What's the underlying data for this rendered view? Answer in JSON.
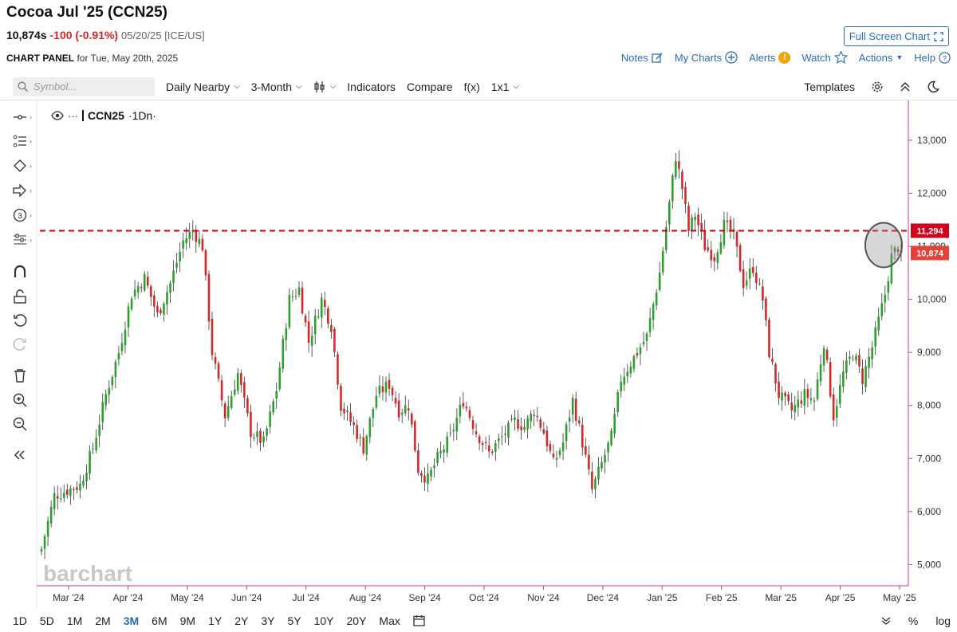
{
  "header": {
    "title": "Cocoa Jul '25 (CCN25)",
    "last": "10,874s",
    "change": "-100 (-0.91%)",
    "meta": "05/20/25 [ICE/US]",
    "full_screen": "Full Screen Chart",
    "panel_label": "CHART PANEL",
    "panel_date": "for Tue, May 20th, 2025"
  },
  "top_links": [
    "Notes",
    "My Charts",
    "Alerts",
    "Watch",
    "Actions",
    "Help"
  ],
  "toolbar": {
    "symbol_placeholder": "Symbol...",
    "nearby": "Daily Nearby",
    "period": "3-Month",
    "indicators": "Indicators",
    "compare": "Compare",
    "fx": "f(x)",
    "layout": "1x1",
    "templates": "Templates"
  },
  "legend": {
    "symbol": "CCN25",
    "interval": "·1Dn·"
  },
  "watermark": "barchart",
  "colors": {
    "up": "#2ca02c",
    "down": "#d62728",
    "accent": "#2b6cb0",
    "line": "#d0021b"
  },
  "chart_data": {
    "type": "candlestick",
    "x_labels": [
      "Mar '24",
      "Apr '24",
      "May '24",
      "Jun '24",
      "Jul '24",
      "Aug '24",
      "Sep '24",
      "Oct '24",
      "Nov '24",
      "Dec '24",
      "Jan '25",
      "Feb '25",
      "Mar '25",
      "Apr '25",
      "May '25"
    ],
    "y_ticks": [
      "13,000",
      "12,000",
      "11,000",
      "10,000",
      "9,000",
      "8,000",
      "7,000",
      "6,000",
      "5,000"
    ],
    "ylim": [
      4600,
      13600
    ],
    "horizontal_line": {
      "value": 11294,
      "label": "11,294"
    },
    "last_price": {
      "value": 10874,
      "label": "10,874"
    },
    "anchors": [
      [
        0,
        5300
      ],
      [
        4,
        6300
      ],
      [
        8,
        6400
      ],
      [
        12,
        6500
      ],
      [
        16,
        7200
      ],
      [
        20,
        8200
      ],
      [
        24,
        9000
      ],
      [
        28,
        10100
      ],
      [
        32,
        10400
      ],
      [
        36,
        9700
      ],
      [
        40,
        10300
      ],
      [
        44,
        11100
      ],
      [
        47,
        11300
      ],
      [
        50,
        11000
      ],
      [
        53,
        9000
      ],
      [
        57,
        7800
      ],
      [
        61,
        8600
      ],
      [
        65,
        7500
      ],
      [
        69,
        7300
      ],
      [
        73,
        8300
      ],
      [
        77,
        10000
      ],
      [
        80,
        10200
      ],
      [
        83,
        9200
      ],
      [
        87,
        10000
      ],
      [
        90,
        9500
      ],
      [
        93,
        8000
      ],
      [
        97,
        7600
      ],
      [
        100,
        7200
      ],
      [
        104,
        8200
      ],
      [
        108,
        8400
      ],
      [
        111,
        7900
      ],
      [
        114,
        8000
      ],
      [
        117,
        6800
      ],
      [
        120,
        6600
      ],
      [
        123,
        7000
      ],
      [
        127,
        7400
      ],
      [
        131,
        8100
      ],
      [
        135,
        7500
      ],
      [
        139,
        7100
      ],
      [
        143,
        7400
      ],
      [
        147,
        7700
      ],
      [
        150,
        7600
      ],
      [
        153,
        7900
      ],
      [
        156,
        7500
      ],
      [
        159,
        6900
      ],
      [
        162,
        7300
      ],
      [
        165,
        8100
      ],
      [
        168,
        7300
      ],
      [
        171,
        6400
      ],
      [
        174,
        6900
      ],
      [
        177,
        7400
      ],
      [
        180,
        8500
      ],
      [
        184,
        8900
      ],
      [
        188,
        9300
      ],
      [
        192,
        10500
      ],
      [
        195,
        11800
      ],
      [
        197,
        12700
      ],
      [
        199,
        12100
      ],
      [
        201,
        11300
      ],
      [
        203,
        11600
      ],
      [
        206,
        11000
      ],
      [
        209,
        10800
      ],
      [
        212,
        11400
      ],
      [
        215,
        11200
      ],
      [
        218,
        10300
      ],
      [
        221,
        10600
      ],
      [
        224,
        10000
      ],
      [
        226,
        9000
      ],
      [
        229,
        8200
      ],
      [
        233,
        7900
      ],
      [
        237,
        8200
      ],
      [
        240,
        8100
      ],
      [
        243,
        9200
      ],
      [
        246,
        7800
      ],
      [
        249,
        8600
      ],
      [
        252,
        9000
      ],
      [
        255,
        8500
      ],
      [
        258,
        9100
      ],
      [
        262,
        10100
      ],
      [
        264,
        10800
      ],
      [
        266,
        11000
      ],
      [
        267,
        10874
      ]
    ]
  },
  "date_ranges": [
    "1D",
    "5D",
    "1M",
    "2M",
    "3M",
    "6M",
    "9M",
    "1Y",
    "2Y",
    "3Y",
    "5Y",
    "10Y",
    "20Y",
    "Max"
  ],
  "active_range": "3M",
  "bottom_right": [
    "%",
    "log"
  ]
}
